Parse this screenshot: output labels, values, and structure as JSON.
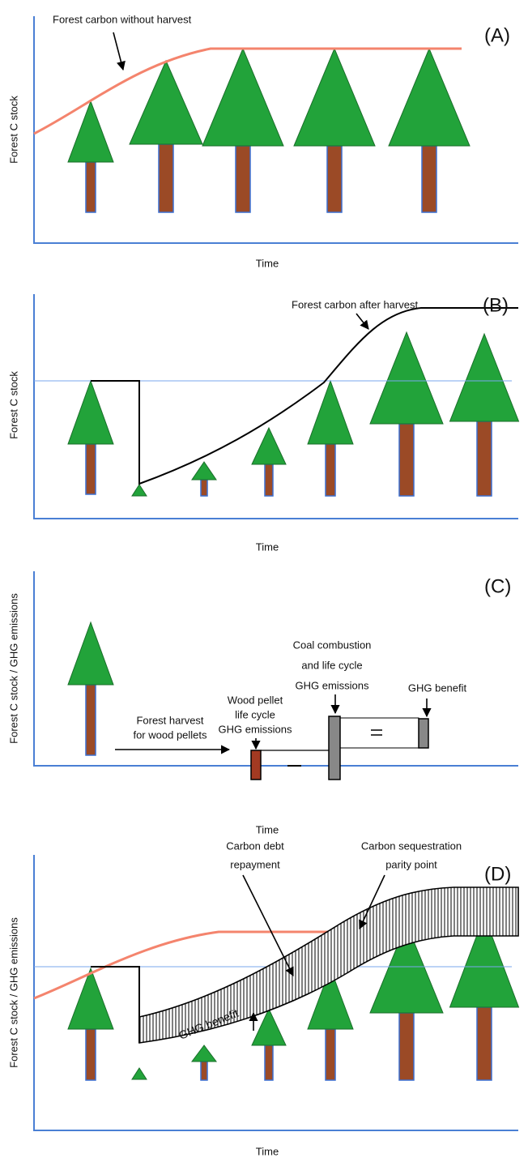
{
  "panels": [
    {
      "label": "(A)",
      "y_axis_label": "Forest C stock",
      "x_axis_label": "Time",
      "annotations": [
        "Forest carbon without harvest"
      ]
    },
    {
      "label": "(B)",
      "y_axis_label": "Forest C stock",
      "x_axis_label": "Time",
      "annotations": [
        "Forest carbon after harvest"
      ]
    },
    {
      "label": "(C)",
      "y_axis_label": "Forest C stock / GHG emissions",
      "x_axis_label": "Time",
      "annotations": [
        [
          "Forest harvest",
          "for wood pellets"
        ],
        [
          "Wood pellet",
          "life cycle",
          "GHG emissions"
        ],
        [
          "Coal combustion",
          "and life cycle",
          "GHG emissions"
        ],
        "GHG benefit"
      ]
    },
    {
      "label": "(D)",
      "y_axis_label": "Forest C stock / GHG emissions",
      "x_axis_label": "Time",
      "annotations": [
        "GHG benefit",
        [
          "Carbon debt",
          "repayment"
        ],
        [
          "Carbon sequestration",
          "parity point"
        ]
      ]
    }
  ]
}
